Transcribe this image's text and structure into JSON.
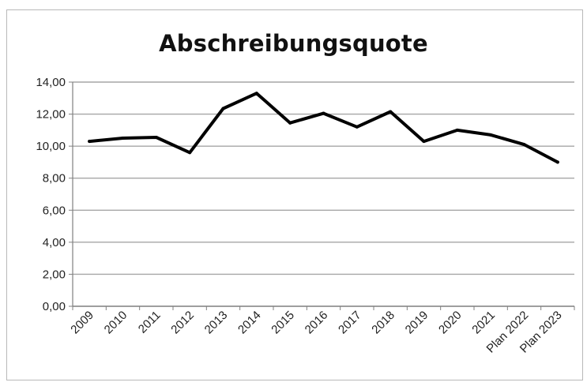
{
  "chart_data": {
    "type": "line",
    "title": "Abschreibungsquote",
    "categories": [
      "2009",
      "2010",
      "2011",
      "2012",
      "2013",
      "2014",
      "2015",
      "2016",
      "2017",
      "2018",
      "2019",
      "2020",
      "2021",
      "Plan 2022",
      "Plan 2023"
    ],
    "series": [
      {
        "values": [
          10.3,
          10.5,
          10.55,
          9.6,
          12.35,
          13.3,
          11.45,
          12.05,
          11.2,
          12.15,
          10.3,
          11.0,
          10.7,
          10.1,
          9.0
        ]
      }
    ],
    "y_ticks": [
      "0,00",
      "2,00",
      "4,00",
      "6,00",
      "8,00",
      "10,00",
      "12,00",
      "14,00"
    ],
    "ylim": [
      0,
      14
    ],
    "grid": true,
    "legend": "none",
    "colors": {
      "line": "#000000",
      "grid": "#a6a6a6"
    }
  }
}
